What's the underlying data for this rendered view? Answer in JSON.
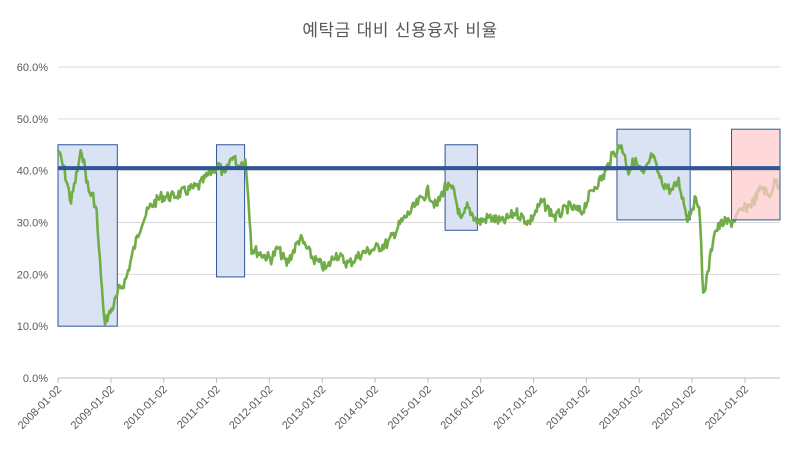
{
  "chart_data": {
    "type": "line",
    "title": "예탁금 대비 신용융자 비율",
    "xlabel": "",
    "ylabel": "",
    "y_ticks": [
      "0.0%",
      "10.0%",
      "20.0%",
      "30.0%",
      "40.0%",
      "50.0%",
      "60.0%"
    ],
    "ylim": [
      0,
      60
    ],
    "x_ticks": [
      "2008-01-02",
      "2009-01-02",
      "2010-01-02",
      "2011-01-02",
      "2012-01-02",
      "2013-01-02",
      "2014-01-02",
      "2015-01-02",
      "2016-01-02",
      "2017-01-02",
      "2018-01-02",
      "2019-01-02",
      "2020-01-02",
      "2021-01-02"
    ],
    "xlim": [
      "2008-01-02",
      "2021-09-01"
    ],
    "grid": "horizontal",
    "legend": "none",
    "series_color": "#70ad47",
    "reference_line": {
      "value": 40.5,
      "color": "#2f5597"
    },
    "highlight_boxes": [
      {
        "x": [
          "2008-01-02",
          "2009-02-15"
        ],
        "y": [
          10,
          45
        ],
        "fill": "#dae3f3",
        "stroke": "#2f5597"
      },
      {
        "x": [
          "2011-01-02",
          "2011-07-15"
        ],
        "y": [
          19.5,
          45
        ],
        "fill": "#dae3f3",
        "stroke": "#2f5597"
      },
      {
        "x": [
          "2015-05-01",
          "2015-12-10"
        ],
        "y": [
          28.5,
          45
        ],
        "fill": "#dae3f3",
        "stroke": "#2f5597"
      },
      {
        "x": [
          "2018-08-01",
          "2019-12-20"
        ],
        "y": [
          30.5,
          48
        ],
        "fill": "#dae3f3",
        "stroke": "#2f5597"
      },
      {
        "x": [
          "2020-10-01",
          "2021-09-01"
        ],
        "y": [
          30.5,
          48
        ],
        "fill": "#ffcccc",
        "stroke": "#2f5597"
      }
    ],
    "series": [
      {
        "x": [
          "2008-01-02",
          "2008-02-15",
          "2008-04-01",
          "2008-05-15",
          "2008-06-15",
          "2008-08-01",
          "2008-09-01",
          "2008-09-25",
          "2008-10-10",
          "2008-10-25",
          "2008-11-15",
          "2008-12-15",
          "2009-01-20",
          "2009-03-01",
          "2009-04-15",
          "2009-06-01",
          "2009-08-01",
          "2009-10-01",
          "2009-12-15",
          "2010-03-01",
          "2010-06-01",
          "2010-09-01",
          "2010-12-01",
          "2011-01-15",
          "2011-03-01",
          "2011-04-20",
          "2011-06-01",
          "2011-07-20",
          "2011-08-10",
          "2011-09-01",
          "2011-11-01",
          "2012-01-15",
          "2012-03-01",
          "2012-05-01",
          "2012-08-01",
          "2012-11-01",
          "2013-02-01",
          "2013-04-01",
          "2013-07-01",
          "2013-10-01",
          "2014-01-02",
          "2014-04-01",
          "2014-07-01",
          "2014-10-01",
          "2015-01-02",
          "2015-03-01",
          "2015-05-01",
          "2015-07-01",
          "2015-08-20",
          "2015-10-01",
          "2015-12-15",
          "2016-03-01",
          "2016-06-01",
          "2016-09-01",
          "2016-12-01",
          "2017-03-01",
          "2017-06-01",
          "2017-09-01",
          "2017-12-01",
          "2018-01-20",
          "2018-03-01",
          "2018-05-01",
          "2018-07-01",
          "2018-09-01",
          "2018-10-20",
          "2018-12-01",
          "2019-02-01",
          "2019-04-01",
          "2019-06-01",
          "2019-08-15",
          "2019-10-01",
          "2019-12-01",
          "2020-01-20",
          "2020-02-20",
          "2020-03-19",
          "2020-04-20",
          "2020-06-01",
          "2020-08-01",
          "2020-10-01",
          "2020-12-01",
          "2021-01-15",
          "2021-03-01",
          "2021-05-01",
          "2021-06-15",
          "2021-08-01",
          "2021-09-01"
        ],
        "values": [
          44,
          40,
          34,
          40,
          44,
          36,
          35,
          32,
          25,
          20,
          11,
          12,
          14,
          17,
          19,
          24,
          30,
          33,
          35,
          35,
          36,
          37,
          40,
          41,
          39,
          43,
          41,
          42,
          35,
          25,
          24,
          23,
          25,
          22,
          27,
          23,
          21,
          24,
          22,
          24,
          25,
          26,
          30,
          33,
          36,
          33,
          37,
          36,
          30,
          33,
          30,
          31,
          30,
          32,
          30,
          34,
          31,
          33,
          32,
          35,
          37,
          39,
          43,
          45,
          40,
          42,
          39,
          43,
          38,
          36,
          38,
          31,
          34,
          34,
          16,
          20,
          28,
          30,
          30,
          32,
          33,
          34,
          37,
          35,
          38,
          37
        ]
      }
    ]
  }
}
